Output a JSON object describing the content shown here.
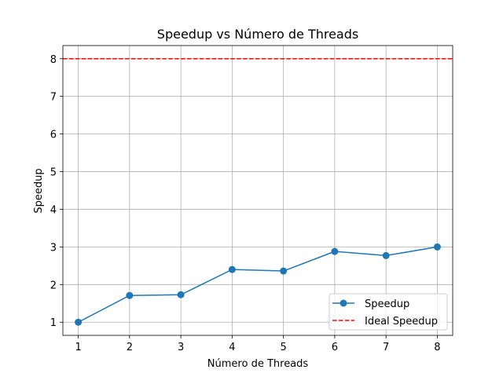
{
  "chart_data": {
    "type": "line",
    "title": "Speedup vs Número de Threads",
    "xlabel": "Número de Threads",
    "ylabel": "Speedup",
    "x": [
      1,
      2,
      3,
      4,
      5,
      6,
      7,
      8
    ],
    "xlim": [
      0.7,
      8.3
    ],
    "ylim": [
      0.65,
      8.35
    ],
    "xticks": [
      "1",
      "2",
      "3",
      "4",
      "5",
      "6",
      "7",
      "8"
    ],
    "yticks": [
      "1",
      "2",
      "3",
      "4",
      "5",
      "6",
      "7",
      "8"
    ],
    "grid": true,
    "legend_position": "lower-right",
    "series": [
      {
        "name": "Speedup",
        "values": [
          1.0,
          1.71,
          1.73,
          2.4,
          2.36,
          2.88,
          2.77,
          3.0
        ],
        "color": "#1f77b4",
        "style": "solid",
        "marker": "circle"
      },
      {
        "name": "Ideal Speedup",
        "values": [
          8,
          8,
          8,
          8,
          8,
          8,
          8,
          8
        ],
        "color": "#ff0000",
        "style": "dashed",
        "marker": "none"
      }
    ]
  }
}
